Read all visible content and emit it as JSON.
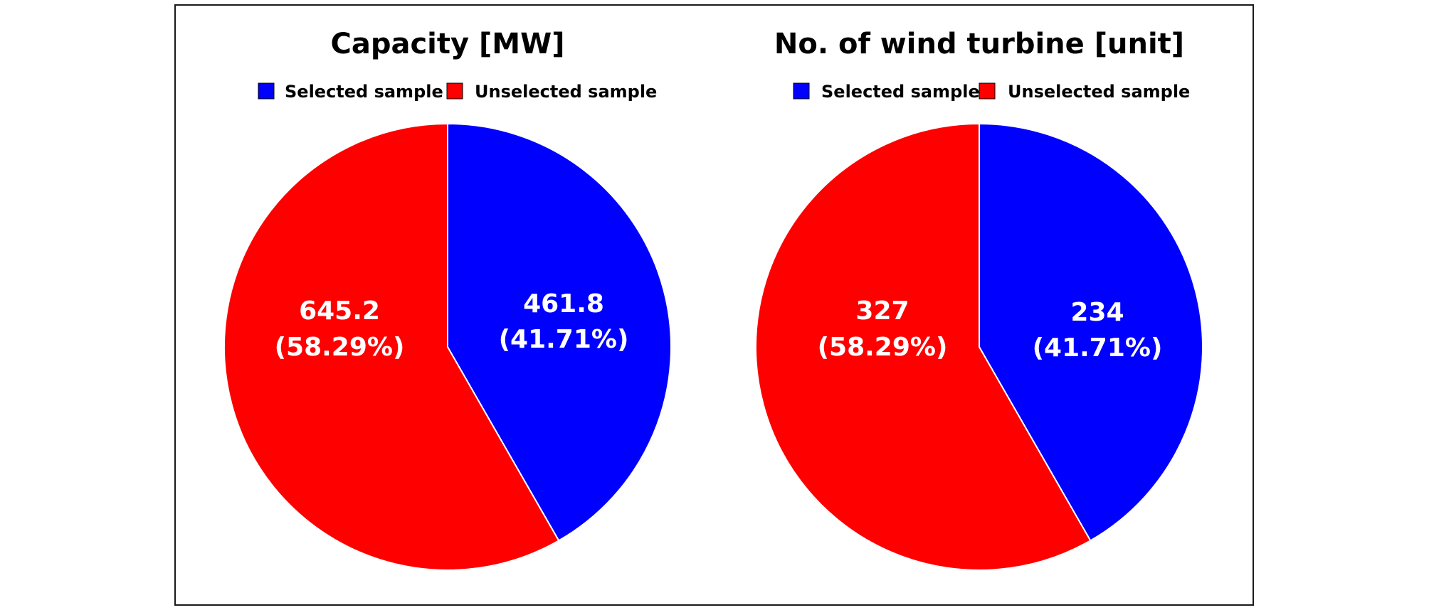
{
  "chart_data": [
    {
      "type": "pie",
      "title": "Capacity [MW]",
      "legend": [
        "Selected sample",
        "Unselected sample"
      ],
      "slices": [
        {
          "name": "Selected sample",
          "value": 461.8,
          "value_label": "461.8",
          "percent_label": "(41.71%)",
          "color": "#0000FF"
        },
        {
          "name": "Unselected sample",
          "value": 645.2,
          "value_label": "645.2",
          "percent_label": "(58.29%)",
          "color": "#FF0000"
        }
      ]
    },
    {
      "type": "pie",
      "title": "No. of wind turbine [unit]",
      "legend": [
        "Selected sample",
        "Unselected sample"
      ],
      "slices": [
        {
          "name": "Selected sample",
          "value": 234,
          "value_label": "234",
          "percent_label": "(41.71%)",
          "color": "#0000FF"
        },
        {
          "name": "Unselected sample",
          "value": 327,
          "value_label": "327",
          "percent_label": "(58.29%)",
          "color": "#FF0000"
        }
      ]
    }
  ]
}
